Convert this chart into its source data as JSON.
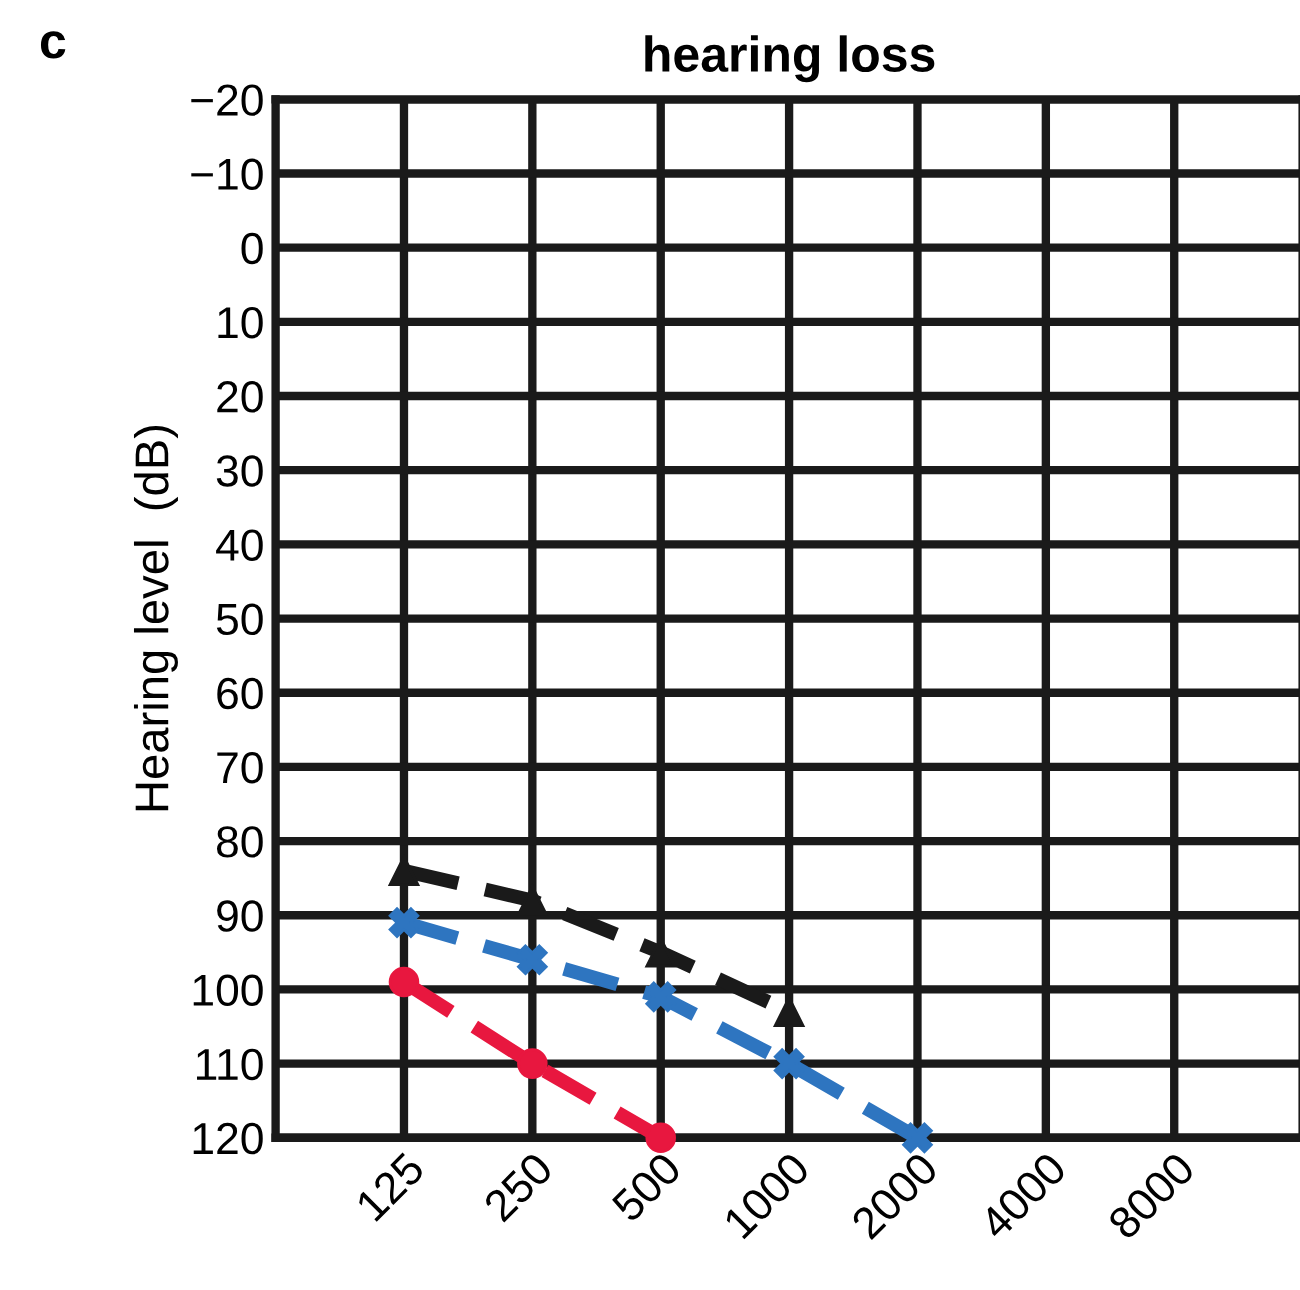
{
  "chart_data": {
    "type": "line",
    "title": "hearing loss",
    "ylabel": "Hearing level  (dB)",
    "annotations": [
      "c"
    ],
    "categories": [
      "125",
      "250",
      "500",
      "1000",
      "2000",
      "4000",
      "8000"
    ],
    "ylim": [
      120,
      -20
    ],
    "yticks": [
      {
        "value": -20,
        "label": "−20"
      },
      {
        "value": -10,
        "label": "−10"
      },
      0,
      10,
      20,
      30,
      40,
      50,
      60,
      70,
      80,
      90,
      100,
      110,
      120
    ],
    "grid": true,
    "line_style": "dashed",
    "series": [
      {
        "color": "#1a1a1a",
        "marker": "triangle",
        "values": [
          84,
          88,
          95,
          103,
          null,
          null,
          null
        ]
      },
      {
        "color": "#2e75c0",
        "marker": "cross",
        "values": [
          91,
          96,
          101,
          110,
          120,
          null,
          null
        ]
      },
      {
        "color": "#e8173f",
        "marker": "circle",
        "values": [
          99,
          110,
          120,
          null,
          null,
          null,
          null
        ]
      }
    ]
  }
}
